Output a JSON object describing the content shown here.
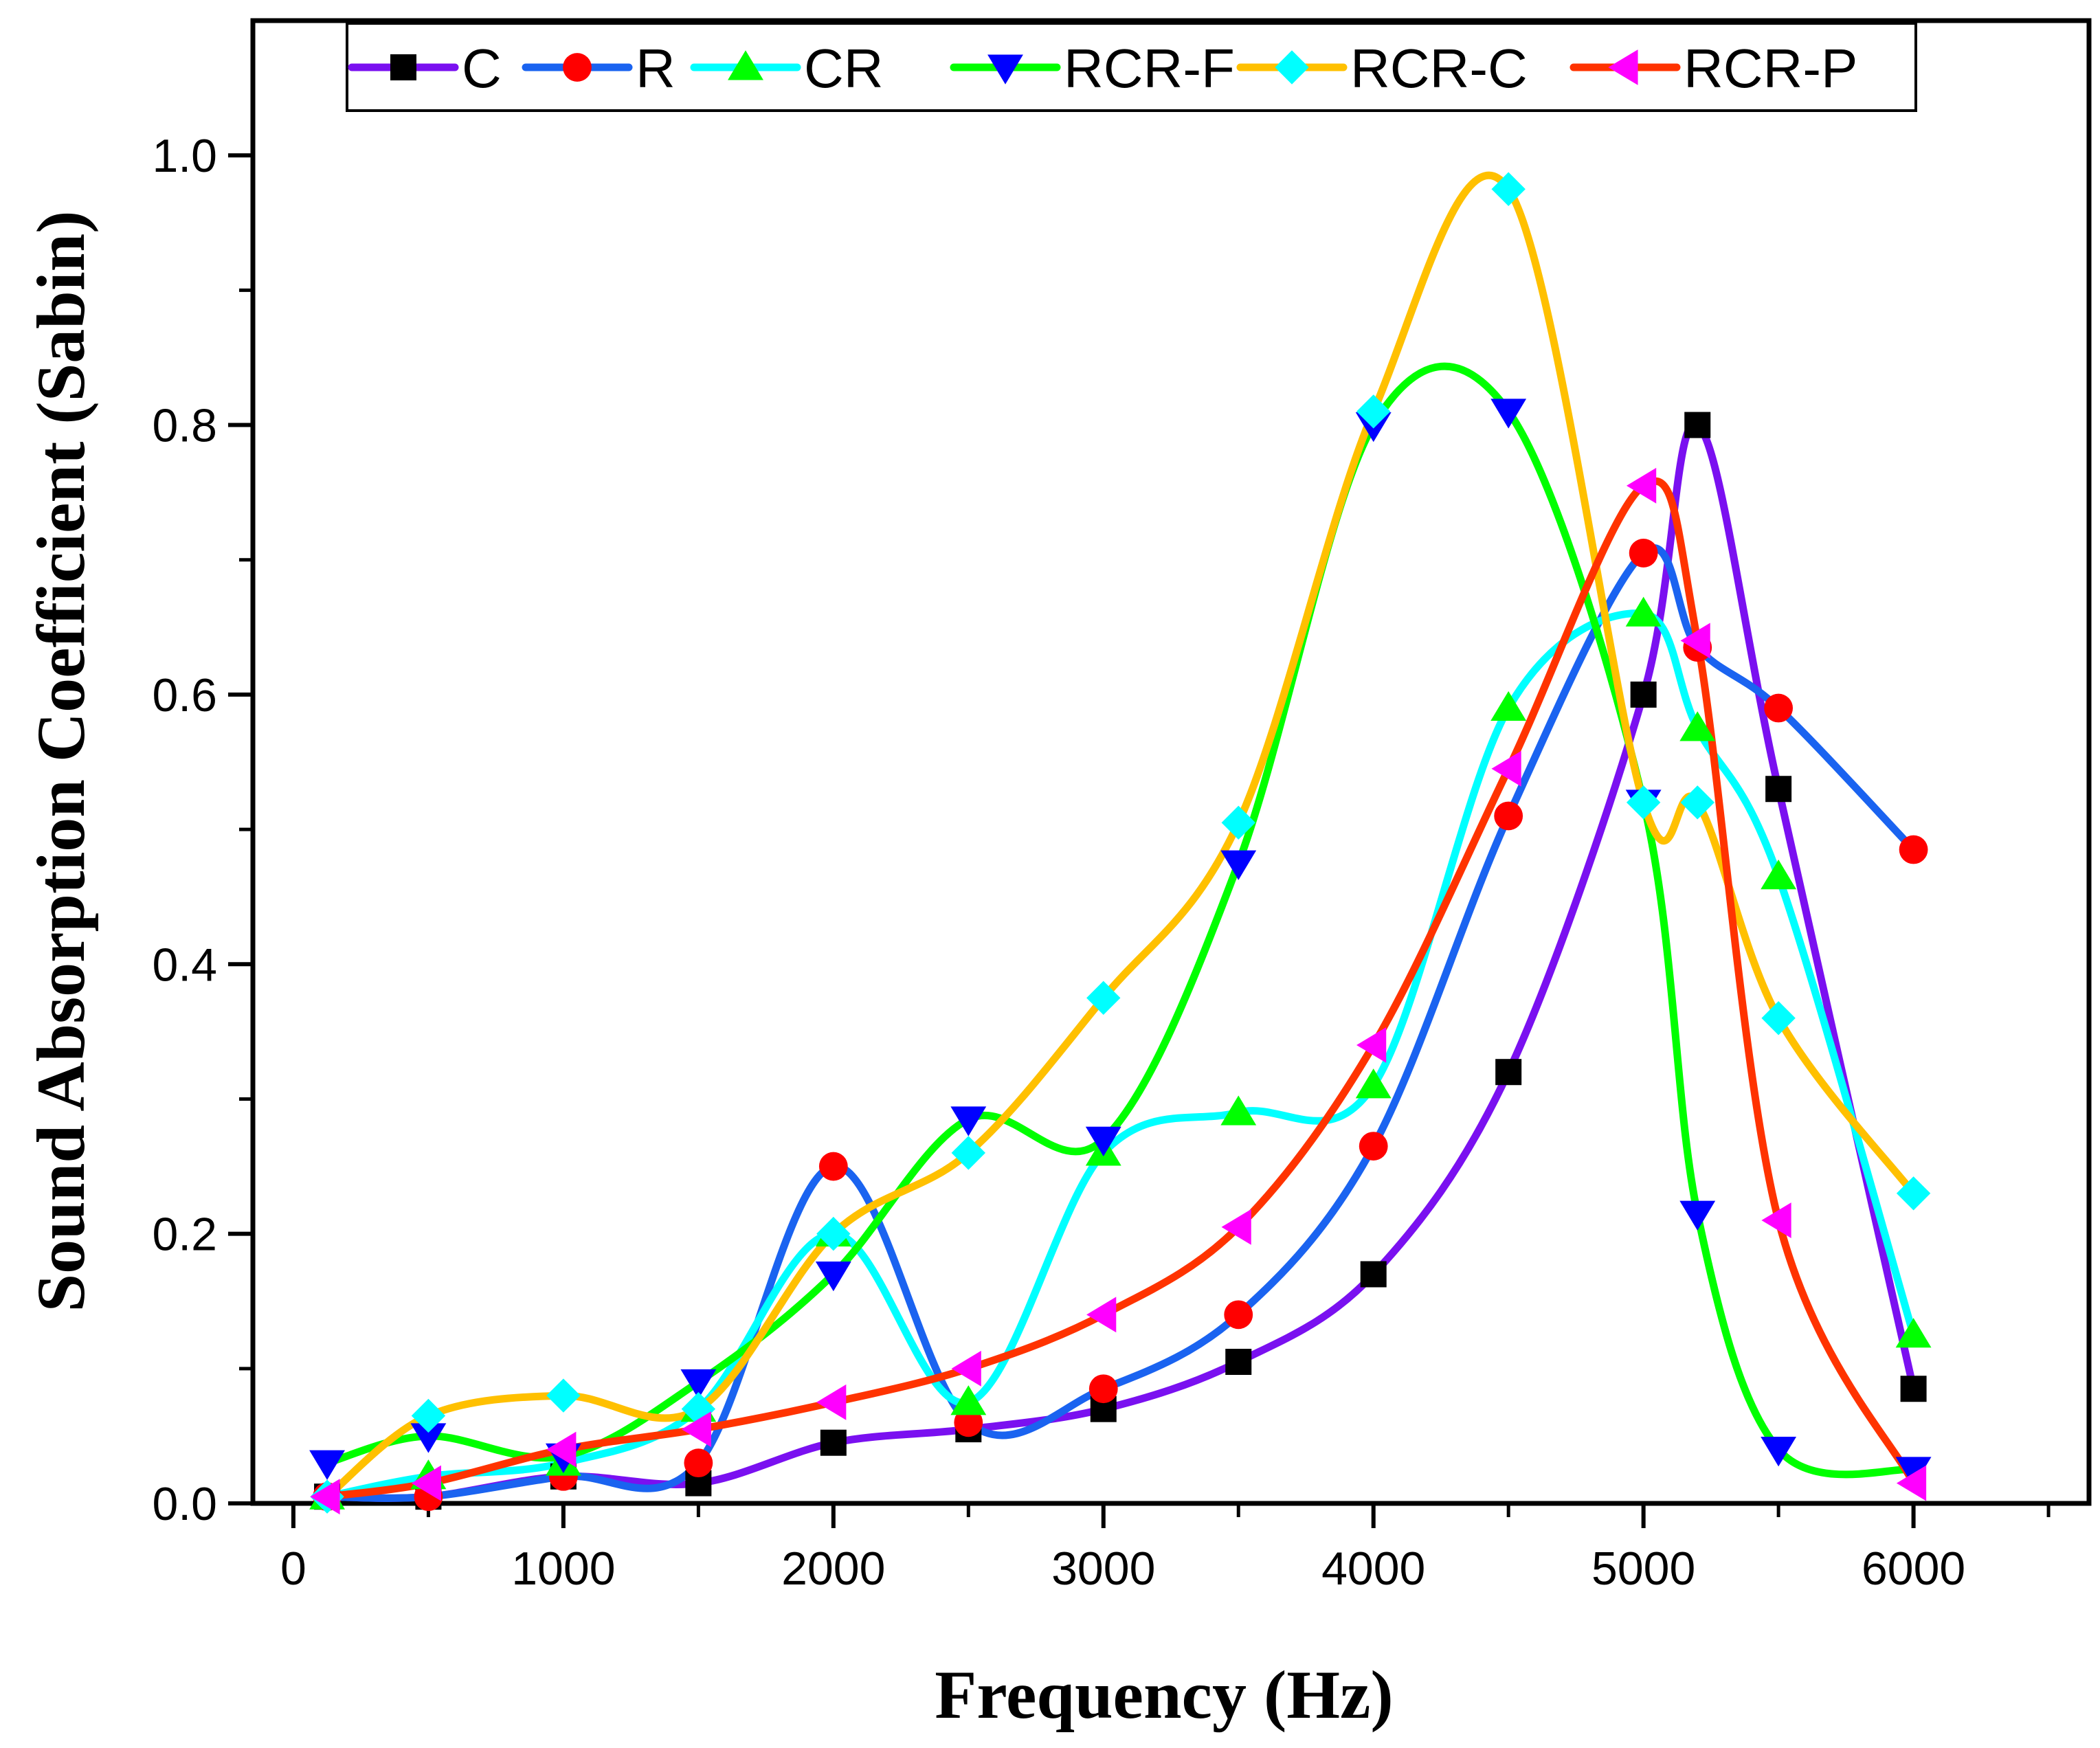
{
  "chart_data": {
    "type": "line",
    "title": "",
    "xlabel": "Frequency (Hz)",
    "ylabel": "Sound Absorption Coefficient (Sabin)",
    "xlim": [
      -150,
      6650
    ],
    "ylim": [
      0,
      1.1
    ],
    "xticks": [
      0,
      1000,
      2000,
      3000,
      4000,
      5000,
      6000
    ],
    "xtick_labels": [
      "0",
      "1000",
      "2000",
      "3000",
      "4000",
      "5000",
      "6000"
    ],
    "yticks": [
      0.0,
      0.2,
      0.4,
      0.6,
      0.8,
      1.0
    ],
    "ytick_labels": [
      "0.0",
      "0.2",
      "0.4",
      "0.6",
      "0.8",
      "1.0"
    ],
    "legend_position": "top",
    "grid": false,
    "series": [
      {
        "name": "C",
        "line_color": "#7a10f0",
        "marker": "square",
        "marker_color": "#000000",
        "x": [
          125,
          500,
          1000,
          1500,
          2000,
          2500,
          3000,
          3500,
          4000,
          4500,
          5000,
          5200,
          5500,
          6000
        ],
        "y": [
          0.005,
          0.005,
          0.02,
          0.015,
          0.045,
          0.055,
          0.07,
          0.105,
          0.17,
          0.32,
          0.6,
          0.8,
          0.53,
          0.085
        ]
      },
      {
        "name": "R",
        "line_color": "#1a63f0",
        "marker": "circle",
        "marker_color": "#ff0000",
        "x": [
          125,
          500,
          1000,
          1500,
          2000,
          2500,
          3000,
          3500,
          4000,
          4500,
          5000,
          5200,
          5500,
          6000
        ],
        "y": [
          0.005,
          0.005,
          0.02,
          0.03,
          0.25,
          0.06,
          0.085,
          0.14,
          0.265,
          0.51,
          0.705,
          0.635,
          0.59,
          0.485
        ]
      },
      {
        "name": "CR",
        "line_color": "#00ffff",
        "marker": "triangle-up",
        "marker_color": "#00ff00",
        "x": [
          125,
          500,
          1000,
          1500,
          2000,
          2500,
          3000,
          3500,
          4000,
          4500,
          5000,
          5200,
          5500,
          6000
        ],
        "y": [
          0.005,
          0.02,
          0.03,
          0.07,
          0.2,
          0.075,
          0.26,
          0.29,
          0.31,
          0.59,
          0.66,
          0.575,
          0.465,
          0.125
        ]
      },
      {
        "name": "RCR-F",
        "line_color": "#00ff00",
        "marker": "triangle-down",
        "marker_color": "#0000ff",
        "x": [
          125,
          500,
          1000,
          1500,
          2000,
          2500,
          3000,
          3500,
          4000,
          4500,
          5000,
          5200,
          5500,
          6000
        ],
        "y": [
          0.03,
          0.05,
          0.035,
          0.09,
          0.17,
          0.285,
          0.27,
          0.475,
          0.8,
          0.81,
          0.52,
          0.215,
          0.04,
          0.025
        ]
      },
      {
        "name": "RCR-C",
        "line_color": "#ffc000",
        "marker": "diamond",
        "marker_color": "#00ffff",
        "x": [
          125,
          500,
          1000,
          1500,
          2000,
          2500,
          3000,
          3500,
          4000,
          4500,
          5000,
          5200,
          5500,
          6000
        ],
        "y": [
          0.005,
          0.065,
          0.08,
          0.07,
          0.2,
          0.26,
          0.375,
          0.505,
          0.81,
          0.975,
          0.52,
          0.52,
          0.36,
          0.23
        ]
      },
      {
        "name": "RCR-P",
        "line_color": "#ff3300",
        "marker": "triangle-left",
        "marker_color": "#ff00ff",
        "x": [
          125,
          500,
          1000,
          1500,
          2000,
          2500,
          3000,
          3500,
          4000,
          4500,
          5000,
          5200,
          5500,
          6000
        ],
        "y": [
          0.005,
          0.015,
          0.04,
          0.055,
          0.075,
          0.1,
          0.14,
          0.205,
          0.34,
          0.545,
          0.755,
          0.64,
          0.21,
          0.015
        ]
      }
    ]
  }
}
